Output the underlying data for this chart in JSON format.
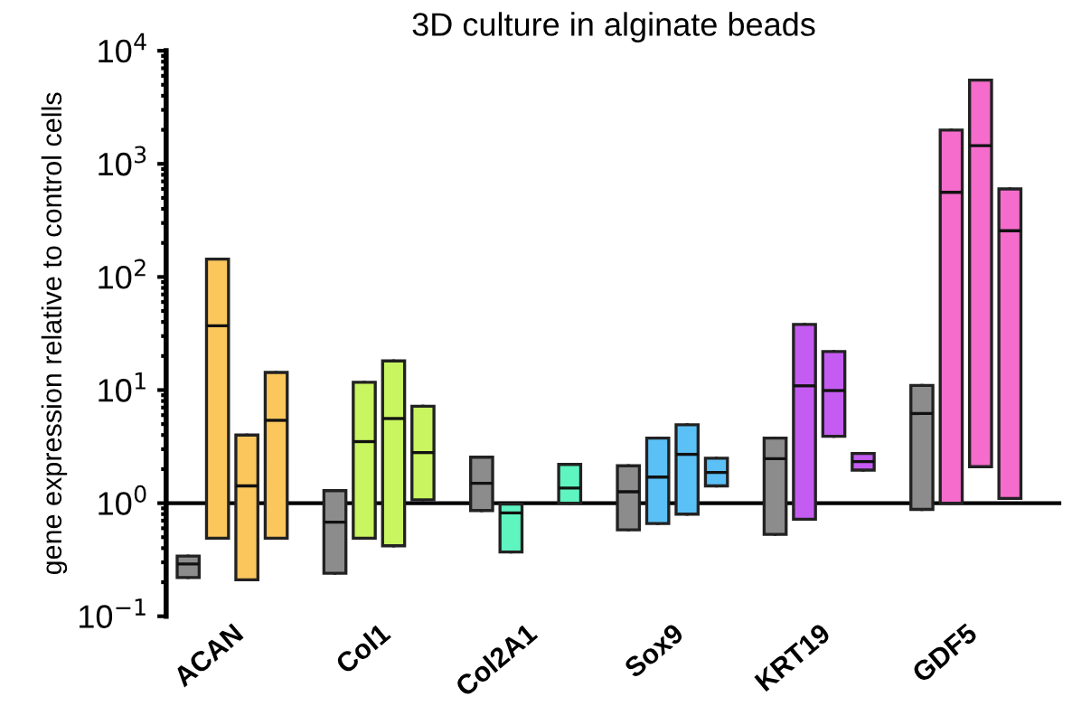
{
  "chart_data": {
    "type": "box",
    "title": "3D culture in alginate beads",
    "ylabel": "gene expression relative to control cells",
    "categories": [
      "ACAN",
      "Col1",
      "Col2A1",
      "Sox9",
      "KRT19",
      "GDF5"
    ],
    "log": true,
    "ylim": [
      0.1,
      10000
    ],
    "yticks": [
      {
        "value": 0.1,
        "label": "10$^{−1}$"
      },
      {
        "value": 1,
        "label": "10$^{0}$"
      },
      {
        "value": 10,
        "label": "10$^{1}$"
      },
      {
        "value": 100,
        "label": "10$^{2}$"
      },
      {
        "value": 1000,
        "label": "10$^{3}$"
      },
      {
        "value": 10000,
        "label": "10$^{4}$"
      }
    ],
    "ref_lines": [
      {
        "axis": "y",
        "value": 1,
        "color": "#000000"
      }
    ],
    "grid": false,
    "legend": false,
    "series": [
      {
        "colors": [
          "#8c8c8c",
          "#8c8c8c",
          "#8c8c8c",
          "#8c8c8c",
          "#8c8c8c",
          "#8c8c8c"
        ],
        "boxes": [
          {
            "low": 0.22,
            "q1": 0.22,
            "median": 0.29,
            "q3": 0.34,
            "high": 0.34
          },
          {
            "low": 0.24,
            "q1": 0.24,
            "median": 0.68,
            "q3": 1.29,
            "high": 1.29
          },
          {
            "low": 0.86,
            "q1": 0.86,
            "median": 1.5,
            "q3": 2.55,
            "high": 2.55
          },
          {
            "low": 0.58,
            "q1": 0.58,
            "median": 1.26,
            "q3": 2.14,
            "high": 2.14
          },
          {
            "low": 0.53,
            "q1": 0.53,
            "median": 2.47,
            "q3": 3.76,
            "high": 3.76
          },
          {
            "low": 0.88,
            "q1": 0.88,
            "median": 6.2,
            "q3": 11,
            "high": 11
          }
        ]
      },
      {
        "colors": [
          "#fbc65c",
          "#c8f560",
          "#5ef5c0",
          "#5bc0f5",
          "#c45cf2",
          "#f56ccc"
        ],
        "boxes": [
          {
            "low": 0.49,
            "q1": 0.49,
            "median": 37,
            "q3": 144,
            "high": 144
          },
          {
            "low": 0.49,
            "q1": 0.49,
            "median": 3.5,
            "q3": 11.7,
            "high": 11.7
          },
          {
            "low": 0.37,
            "q1": 0.37,
            "median": 0.82,
            "q3": 0.98,
            "high": 0.98
          },
          {
            "low": 0.66,
            "q1": 0.66,
            "median": 1.7,
            "q3": 3.76,
            "high": 3.76
          },
          {
            "low": 0.72,
            "q1": 0.72,
            "median": 10.9,
            "q3": 38,
            "high": 38
          },
          {
            "low": 1.0,
            "q1": 1.0,
            "median": 560,
            "q3": 1990,
            "high": 1990
          }
        ]
      },
      {
        "colors": [
          "#fbc65c",
          "#c8f560",
          "#5ef5c0",
          "#5bc0f5",
          "#c45cf2",
          "#f56ccc"
        ],
        "boxes": [
          {
            "low": 0.21,
            "q1": 0.21,
            "median": 1.42,
            "q3": 4.0,
            "high": 4.0
          },
          {
            "low": 0.42,
            "q1": 0.42,
            "median": 5.6,
            "q3": 18.1,
            "high": 18.1
          },
          null,
          {
            "low": 0.8,
            "q1": 0.8,
            "median": 2.7,
            "q3": 4.94,
            "high": 4.94
          },
          {
            "low": 3.9,
            "q1": 3.9,
            "median": 9.9,
            "q3": 21.9,
            "high": 21.9
          },
          {
            "low": 2.1,
            "q1": 2.1,
            "median": 1450,
            "q3": 5500,
            "high": 5500
          }
        ]
      },
      {
        "colors": [
          "#fbc65c",
          "#c8f560",
          "#5ef5c0",
          "#5bc0f5",
          "#c45cf2",
          "#f56ccc"
        ],
        "boxes": [
          {
            "low": 0.49,
            "q1": 0.49,
            "median": 5.4,
            "q3": 14.3,
            "high": 14.3
          },
          {
            "low": 1.07,
            "q1": 1.07,
            "median": 2.8,
            "q3": 7.2,
            "high": 7.2
          },
          {
            "low": 1.0,
            "q1": 1.0,
            "median": 1.36,
            "q3": 2.2,
            "high": 2.2
          },
          {
            "low": 1.42,
            "q1": 1.42,
            "median": 1.87,
            "q3": 2.5,
            "high": 2.5
          },
          {
            "low": 1.96,
            "q1": 1.96,
            "median": 2.33,
            "q3": 2.75,
            "high": 2.75
          },
          {
            "low": 1.1,
            "q1": 1.1,
            "median": 256,
            "q3": 600,
            "high": 600
          }
        ]
      }
    ]
  }
}
